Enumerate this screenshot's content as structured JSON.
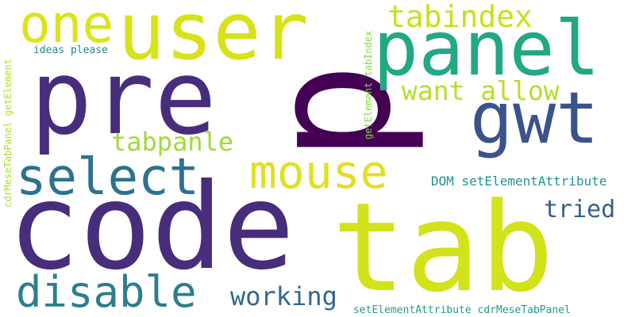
{
  "words": [
    {
      "key": "code",
      "text": "code",
      "color": "#472d7b"
    },
    {
      "key": "tab",
      "text": "tab",
      "color": "#d2e21b"
    },
    {
      "key": "pre",
      "text": "pre",
      "color": "#472d7b"
    },
    {
      "key": "p",
      "text": "p",
      "color": "#440154"
    },
    {
      "key": "user",
      "text": "user",
      "color": "#d8e219"
    },
    {
      "key": "panel",
      "text": "panel",
      "color": "#22a884"
    },
    {
      "key": "gwt",
      "text": "gwt",
      "color": "#3b528b"
    },
    {
      "key": "one",
      "text": "one",
      "color": "#dde318"
    },
    {
      "key": "select",
      "text": "select",
      "color": "#2c728e"
    },
    {
      "key": "mouse",
      "text": "mouse",
      "color": "#e0e021"
    },
    {
      "key": "disable",
      "text": "disable",
      "color": "#2c7e8e"
    },
    {
      "key": "tabindex",
      "text": "tabindex",
      "color": "#c8e020"
    },
    {
      "key": "want_allow",
      "text": "want allow",
      "color": "#b5de2b"
    },
    {
      "key": "working",
      "text": "working",
      "color": "#31688e"
    },
    {
      "key": "tabpanle",
      "text": "tabpanle",
      "color": "#a2da37"
    },
    {
      "key": "tried",
      "text": "tried",
      "color": "#355f8d"
    },
    {
      "key": "dom_setelementattribute",
      "text": "DOM setElementAttribute",
      "color": "#21918c"
    },
    {
      "key": "ideas_please",
      "text": "ideas please",
      "color": "#25858e"
    },
    {
      "key": "setelementattribute_cdrmesetabpanel",
      "text": "setElementAttribute cdrMeseTabPanel",
      "color": "#1f9e89"
    },
    {
      "key": "cdrmesetabpanel_getelement",
      "text": "cdrMeseTabPanel getElement",
      "color": "#addc30"
    },
    {
      "key": "getelement_tabindex",
      "text": "getElement tabIndex",
      "color": "#86d549"
    }
  ]
}
